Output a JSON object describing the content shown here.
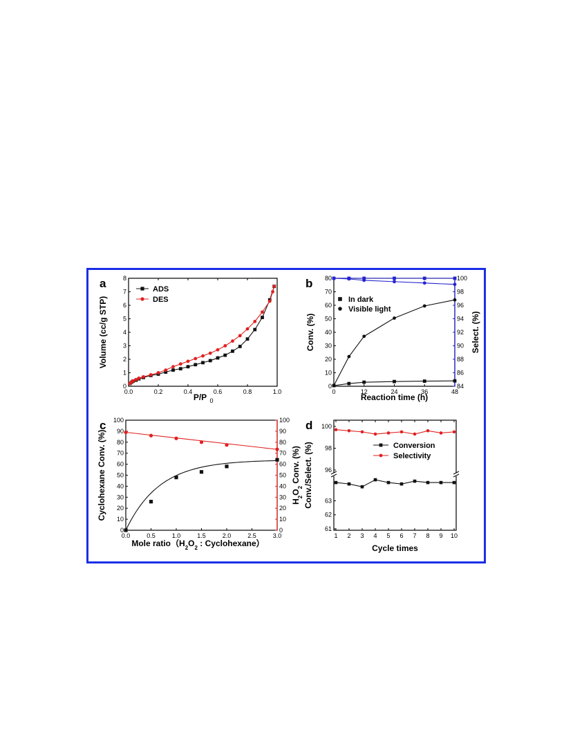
{
  "colors": {
    "frame": "#1a2ee6",
    "black": "#111111",
    "red": "#e02020",
    "blue": "#2424d0"
  },
  "panels": [
    {
      "label": "a"
    },
    {
      "label": "b"
    },
    {
      "label": "c"
    },
    {
      "label": "d"
    }
  ],
  "chart_data": [
    {
      "panel": "a",
      "type": "line",
      "xlabel": "P/P",
      "xlabel_sub": "0",
      "ylabel": "Volume (cc/g STP)",
      "xlim": [
        0,
        1.0
      ],
      "ylim": [
        0,
        8
      ],
      "xticks": [
        "0.0",
        "0.2",
        "0.4",
        "0.6",
        "0.8",
        "1.0"
      ],
      "yticks": [
        "0",
        "1",
        "2",
        "3",
        "4",
        "5",
        "6",
        "7",
        "8"
      ],
      "legend": "top-left",
      "series": [
        {
          "name": "ADS",
          "color": "#111111",
          "marker": "square",
          "x": [
            0.01,
            0.02,
            0.03,
            0.05,
            0.07,
            0.1,
            0.15,
            0.2,
            0.25,
            0.3,
            0.35,
            0.4,
            0.45,
            0.5,
            0.55,
            0.6,
            0.65,
            0.7,
            0.75,
            0.8,
            0.85,
            0.9,
            0.95,
            0.98
          ],
          "y": [
            0.2,
            0.3,
            0.38,
            0.45,
            0.55,
            0.65,
            0.8,
            0.9,
            1.05,
            1.2,
            1.3,
            1.45,
            1.6,
            1.75,
            1.9,
            2.1,
            2.3,
            2.6,
            2.95,
            3.5,
            4.2,
            5.1,
            6.4,
            7.4
          ]
        },
        {
          "name": "DES",
          "color": "#e02020",
          "marker": "circle",
          "x": [
            0.01,
            0.02,
            0.03,
            0.05,
            0.07,
            0.1,
            0.15,
            0.2,
            0.25,
            0.3,
            0.35,
            0.4,
            0.45,
            0.5,
            0.55,
            0.6,
            0.65,
            0.7,
            0.75,
            0.8,
            0.85,
            0.9,
            0.95,
            0.97,
            0.98
          ],
          "y": [
            0.2,
            0.32,
            0.4,
            0.5,
            0.6,
            0.7,
            0.85,
            1.0,
            1.2,
            1.45,
            1.65,
            1.85,
            2.05,
            2.25,
            2.45,
            2.7,
            3.0,
            3.35,
            3.75,
            4.25,
            4.8,
            5.5,
            6.3,
            7.0,
            7.4
          ]
        }
      ]
    },
    {
      "panel": "b",
      "type": "line",
      "xlabel": "Reaction time (h)",
      "ylabel": "Conv. (%)",
      "ylabel_right": "Select. (%)",
      "xlim": [
        0,
        48
      ],
      "ylim": [
        0,
        80
      ],
      "ylim_right": [
        84,
        100
      ],
      "xticks": [
        "0",
        "12",
        "24",
        "36",
        "48"
      ],
      "yticks": [
        "0",
        "10",
        "20",
        "30",
        "40",
        "50",
        "60",
        "70",
        "80"
      ],
      "yticks_right": [
        "84",
        "86",
        "88",
        "90",
        "92",
        "94",
        "96",
        "98",
        "100"
      ],
      "legend": "top-left",
      "series": [
        {
          "name": "In dark",
          "color": "#111111",
          "marker": "square",
          "axis": "left",
          "x": [
            0,
            6,
            12,
            24,
            36,
            48
          ],
          "y": [
            0.5,
            2,
            3,
            3.5,
            3.8,
            4
          ]
        },
        {
          "name": "Visible light",
          "color": "#111111",
          "marker": "circle",
          "axis": "left",
          "x": [
            0,
            6,
            12,
            24,
            36,
            48
          ],
          "y": [
            0.5,
            22,
            37,
            50.5,
            59.5,
            64
          ]
        },
        {
          "color": "#2424d0",
          "marker": "square",
          "axis": "right",
          "x": [
            0,
            6,
            12,
            24,
            36,
            48
          ],
          "y": [
            100,
            100,
            100,
            100,
            100,
            100
          ]
        },
        {
          "color": "#2424d0",
          "marker": "circle",
          "axis": "right",
          "x": [
            0,
            6,
            12,
            24,
            36,
            48
          ],
          "y": [
            100,
            99.9,
            99.7,
            99.5,
            99.3,
            99.1
          ]
        }
      ]
    },
    {
      "panel": "c",
      "type": "scatter",
      "xlabel": "Mole ratio（H₂O₂ : Cyclohexane）",
      "ylabel": "Cyclohexane Conv. (%)",
      "ylabel_right": "H₂O₂ Conv. (%)",
      "xlim": [
        0,
        3.0
      ],
      "ylim": [
        0,
        100
      ],
      "ylim_right": [
        0,
        100
      ],
      "xticks": [
        "0.0",
        "0.5",
        "1.0",
        "1.5",
        "2.0",
        "2.5",
        "3.0"
      ],
      "yticks": [
        "0",
        "10",
        "20",
        "30",
        "40",
        "50",
        "60",
        "70",
        "80",
        "90",
        "100"
      ],
      "yticks_right": [
        "0",
        "10",
        "20",
        "30",
        "40",
        "50",
        "60",
        "70",
        "80",
        "90",
        "100"
      ],
      "series": [
        {
          "color": "#111111",
          "marker": "square",
          "axis": "left",
          "fit": "curve",
          "x": [
            0,
            0.5,
            1.0,
            1.5,
            2.0,
            3.0
          ],
          "y": [
            0,
            26,
            48,
            53,
            58,
            64
          ]
        },
        {
          "color": "#e02020",
          "marker": "circle",
          "axis": "right",
          "fit": "line",
          "x": [
            0,
            0.5,
            1.0,
            1.5,
            2.0,
            3.0
          ],
          "y": [
            89,
            86,
            83.5,
            80,
            77.5,
            73.5
          ]
        }
      ]
    },
    {
      "panel": "d",
      "type": "line",
      "xlabel": "Cycle times",
      "ylabel": "Conv./Select. (%)",
      "xlim": [
        1,
        10
      ],
      "broken_axis": true,
      "upper_ylim": [
        96,
        100
      ],
      "lower_ylim": [
        61,
        65
      ],
      "yticks_upper": [
        "96",
        "98",
        "100"
      ],
      "yticks_lower": [
        "61",
        "62",
        "63"
      ],
      "xticks": [
        "1",
        "2",
        "3",
        "4",
        "5",
        "6",
        "7",
        "8",
        "9",
        "10"
      ],
      "legend": "center",
      "series": [
        {
          "name": "Conversion",
          "color": "#111111",
          "marker": "square",
          "x": [
            1,
            2,
            3,
            4,
            5,
            6,
            7,
            8,
            9,
            10
          ],
          "y": [
            64.3,
            64.2,
            64.0,
            64.5,
            64.3,
            64.2,
            64.4,
            64.3,
            64.3,
            64.3
          ]
        },
        {
          "name": "Selectivity",
          "color": "#e02020",
          "marker": "circle",
          "x": [
            1,
            2,
            3,
            4,
            5,
            6,
            7,
            8,
            9,
            10
          ],
          "y": [
            99.7,
            99.6,
            99.5,
            99.3,
            99.4,
            99.5,
            99.3,
            99.6,
            99.4,
            99.5
          ]
        }
      ]
    }
  ]
}
